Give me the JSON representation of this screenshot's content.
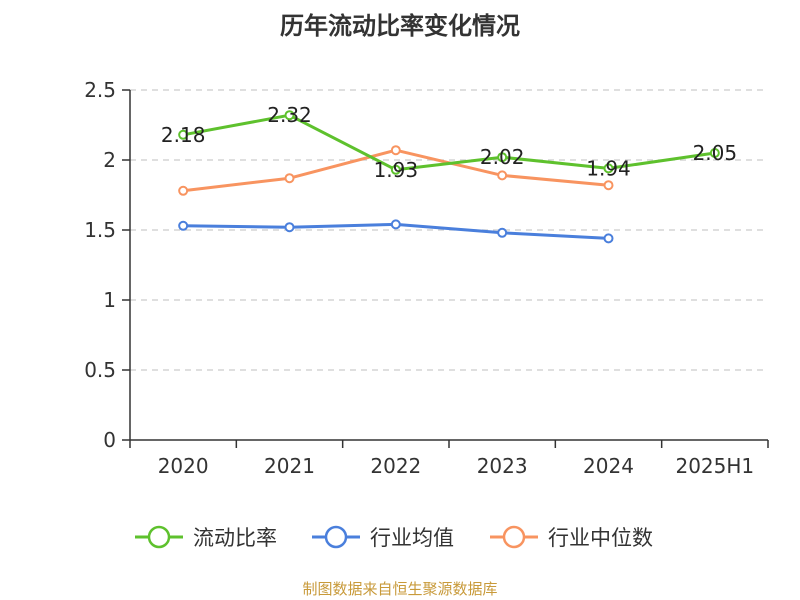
{
  "chart_data": {
    "type": "line",
    "title": "历年流动比率变化情况",
    "categories": [
      "2020",
      "2021",
      "2022",
      "2023",
      "2024",
      "2025H1"
    ],
    "ylim": [
      0,
      2.5
    ],
    "yticks": [
      "0",
      "0.5",
      "1",
      "1.5",
      "2",
      "2.5"
    ],
    "grid": true,
    "legend_position": "bottom",
    "series": [
      {
        "name": "流动比率",
        "color": "#5ec12d",
        "labeled": true,
        "values": [
          2.18,
          2.32,
          1.93,
          2.02,
          1.94,
          2.05
        ],
        "labels": [
          "2.18",
          "2.32",
          "1.93",
          "2.02",
          "1.94",
          "2.05"
        ]
      },
      {
        "name": "行业均值",
        "color": "#4a7fdc",
        "labeled": false,
        "values": [
          1.53,
          1.52,
          1.54,
          1.48,
          1.44,
          null
        ]
      },
      {
        "name": "行业中位数",
        "color": "#f89460",
        "labeled": false,
        "values": [
          1.78,
          1.87,
          2.07,
          1.89,
          1.82,
          null
        ]
      }
    ]
  },
  "source_note": "制图数据来自恒生聚源数据库"
}
